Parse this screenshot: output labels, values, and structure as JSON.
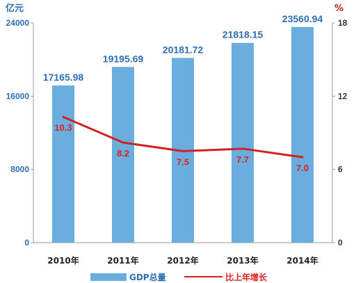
{
  "chart_data": {
    "type": "bar",
    "title": "",
    "categories": [
      "2010年",
      "2011年",
      "2012年",
      "2013年",
      "2014年"
    ],
    "series": [
      {
        "name": "GDP总量",
        "type": "bar",
        "axis": "left",
        "values": [
          17165.98,
          19195.69,
          20181.72,
          21818.15,
          23560.94
        ],
        "labels": [
          "17165.98",
          "19195.69",
          "20181.72",
          "21818.15",
          "23560.94"
        ],
        "color": "#6aaee0"
      },
      {
        "name": "比上年增长",
        "type": "line",
        "axis": "right",
        "values": [
          10.3,
          8.2,
          7.5,
          7.7,
          7.0
        ],
        "labels": [
          "10.3",
          "8.2",
          "7.5",
          "7.7",
          "7.0"
        ],
        "color": "#d42020"
      }
    ],
    "y_left": {
      "unit": "亿元",
      "ylim": [
        0,
        24000
      ],
      "ticks": [
        "0",
        "8000",
        "16000",
        "24000"
      ],
      "tick_values": [
        0,
        8000,
        16000,
        24000
      ]
    },
    "y_right": {
      "unit": "%",
      "ylim": [
        0,
        18
      ],
      "ticks": [
        "0",
        "6",
        "12",
        "18"
      ],
      "tick_values": [
        0,
        6,
        12,
        18
      ]
    },
    "grid": false,
    "legend_position": "bottom"
  }
}
